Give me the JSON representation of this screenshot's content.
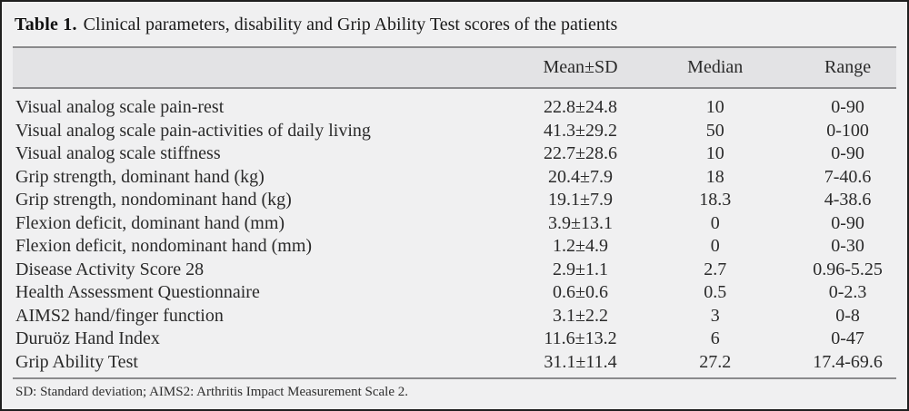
{
  "title": {
    "label": "Table 1.",
    "caption": "Clinical parameters, disability and Grip Ability Test scores of the patients"
  },
  "table": {
    "columns": [
      "Mean±SD",
      "Median",
      "Range"
    ],
    "rows": [
      {
        "label": "Visual analog scale pain-rest",
        "mean_sd": "22.8±24.8",
        "median": "10",
        "range": "0-90"
      },
      {
        "label": "Visual analog scale pain-activities of daily living",
        "mean_sd": "41.3±29.2",
        "median": "50",
        "range": "0-100"
      },
      {
        "label": "Visual analog scale stiffness",
        "mean_sd": "22.7±28.6",
        "median": "10",
        "range": "0-90"
      },
      {
        "label": "Grip strength, dominant hand (kg)",
        "mean_sd": "20.4±7.9",
        "median": "18",
        "range": "7-40.6"
      },
      {
        "label": "Grip strength, nondominant hand (kg)",
        "mean_sd": "19.1±7.9",
        "median": "18.3",
        "range": "4-38.6"
      },
      {
        "label": "Flexion deficit, dominant hand (mm)",
        "mean_sd": "3.9±13.1",
        "median": "0",
        "range": "0-90"
      },
      {
        "label": "Flexion deficit, nondominant hand (mm)",
        "mean_sd": "1.2±4.9",
        "median": "0",
        "range": "0-30"
      },
      {
        "label": "Disease Activity Score 28",
        "mean_sd": "2.9±1.1",
        "median": "2.7",
        "range": "0.96-5.25"
      },
      {
        "label": "Health Assessment Questionnaire",
        "mean_sd": "0.6±0.6",
        "median": "0.5",
        "range": "0-2.3"
      },
      {
        "label": "AIMS2 hand/finger function",
        "mean_sd": "3.1±2.2",
        "median": "3",
        "range": "0-8"
      },
      {
        "label": "Duruöz Hand Index",
        "mean_sd": "11.6±13.2",
        "median": "6",
        "range": "0-47"
      },
      {
        "label": "Grip Ability Test",
        "mean_sd": "31.1±11.4",
        "median": "27.2",
        "range": "17.4-69.6"
      }
    ]
  },
  "footnote": "SD: Standard deviation; AIMS2: Arthritis Impact Measurement Scale 2.",
  "colors": {
    "card_bg": "#f0f0f1",
    "header_band_bg": "#e3e3e5",
    "rule": "#8a8a8c",
    "outer_border": "#1f1f1f",
    "text": "#262626"
  }
}
